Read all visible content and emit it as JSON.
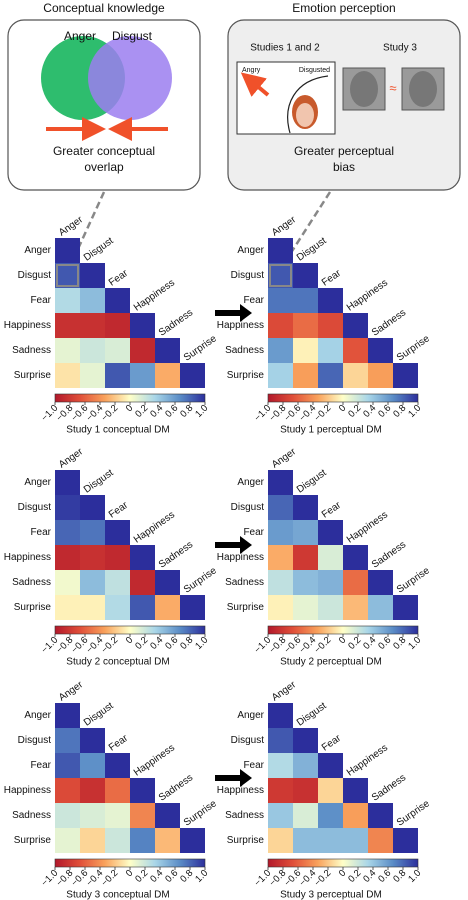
{
  "header": {
    "conceptual": {
      "title": "Conceptual knowledge",
      "circles": [
        "Anger",
        "Disgust"
      ],
      "caption": [
        "Greater conceptual",
        "overlap"
      ]
    },
    "perception": {
      "title": "Emotion perception",
      "studies_1_2": "Studies 1 and 2",
      "study_3": "Study 3",
      "axis_labels": [
        "Angry",
        "Disgusted"
      ],
      "approx": "≈",
      "caption": [
        "Greater perceptual",
        "bias"
      ]
    }
  },
  "chart_data": [
    {
      "type": "heatmap",
      "title": "Study 1 conceptual DM",
      "categories": [
        "Anger",
        "Disgust",
        "Fear",
        "Happiness",
        "Sadness",
        "Surprise"
      ],
      "values": [
        [
          1
        ],
        [
          0.85,
          1
        ],
        [
          0.3,
          0.45,
          1
        ],
        [
          -0.85,
          -0.85,
          -0.9,
          1
        ],
        [
          0.1,
          0.2,
          0.15,
          -0.9,
          1
        ],
        [
          -0.1,
          0.1,
          0.85,
          0.6,
          -0.3,
          1
        ]
      ],
      "clim": [
        -1,
        1
      ],
      "colors": [
        "#b2182b",
        "#e04f39",
        "#f9a25c",
        "#ffffc8",
        "#a9d6e8",
        "#5a8cc6",
        "#2c2e9c"
      ],
      "cticks": [
        {
          "value": -1,
          "label": "−1.0"
        },
        {
          "value": -0.8,
          "label": "−0.8"
        },
        {
          "value": -0.6,
          "label": "−0.6"
        },
        {
          "value": -0.4,
          "label": "−0.4"
        },
        {
          "value": -0.2,
          "label": "−0.2"
        },
        0,
        0.2,
        0.4,
        0.6,
        0.8,
        {
          "value": 1,
          "label": "1.0"
        }
      ]
    },
    {
      "type": "heatmap",
      "title": "Study 1 perceptual DM",
      "categories": [
        "Anger",
        "Disgust",
        "Fear",
        "Happiness",
        "Sadness",
        "Surprise"
      ],
      "values": [
        [
          1
        ],
        [
          0.85,
          1
        ],
        [
          0.75,
          0.75,
          1
        ],
        [
          -0.7,
          -0.55,
          -0.7,
          1
        ],
        [
          0.6,
          -0.05,
          0.35,
          -0.65,
          1
        ],
        [
          0.35,
          -0.35,
          0.8,
          -0.15,
          -0.35,
          1
        ]
      ],
      "clim": [
        -1,
        1
      ],
      "colors": [
        "#b2182b",
        "#e04f39",
        "#f9a25c",
        "#ffffc8",
        "#a9d6e8",
        "#5a8cc6",
        "#2c2e9c"
      ],
      "cticks": [
        {
          "value": -1,
          "label": "−1.0"
        },
        {
          "value": -0.8,
          "label": "−0.8"
        },
        {
          "value": -0.6,
          "label": "−0.6"
        },
        {
          "value": -0.4,
          "label": "−0.4"
        },
        {
          "value": -0.2,
          "label": "−0.2"
        },
        0,
        0.2,
        0.4,
        0.6,
        0.8,
        {
          "value": 1,
          "label": "1.0"
        }
      ]
    },
    {
      "type": "heatmap",
      "title": "Study 2 conceptual DM",
      "categories": [
        "Anger",
        "Disgust",
        "Fear",
        "Happiness",
        "Sadness",
        "Surprise"
      ],
      "values": [
        [
          1
        ],
        [
          0.95,
          1
        ],
        [
          0.8,
          0.75,
          1
        ],
        [
          -0.9,
          -0.85,
          -0.9,
          1
        ],
        [
          0.05,
          0.45,
          0.25,
          -0.9,
          1
        ],
        [
          -0.05,
          -0.05,
          0.3,
          0.85,
          -0.3,
          1
        ]
      ],
      "clim": [
        -1,
        1
      ],
      "colors": [
        "#b2182b",
        "#e04f39",
        "#f9a25c",
        "#ffffc8",
        "#a9d6e8",
        "#5a8cc6",
        "#2c2e9c"
      ],
      "cticks": [
        {
          "value": -1,
          "label": "−1.0"
        },
        {
          "value": -0.8,
          "label": "−0.8"
        },
        {
          "value": -0.6,
          "label": "−0.6"
        },
        {
          "value": -0.4,
          "label": "−0.4"
        },
        {
          "value": -0.2,
          "label": "−0.2"
        },
        0,
        0.2,
        0.4,
        0.6,
        0.8,
        {
          "value": 1,
          "label": "1.0"
        }
      ]
    },
    {
      "type": "heatmap",
      "title": "Study 2 perceptual DM",
      "categories": [
        "Anger",
        "Disgust",
        "Fear",
        "Happiness",
        "Sadness",
        "Surprise"
      ],
      "values": [
        [
          1
        ],
        [
          0.8,
          1
        ],
        [
          0.6,
          0.55,
          1
        ],
        [
          -0.3,
          -0.8,
          0.15,
          1
        ],
        [
          0.25,
          0.45,
          0.5,
          -0.55,
          1
        ],
        [
          -0.05,
          0.1,
          0.2,
          -0.25,
          0.45,
          1
        ]
      ],
      "clim": [
        -1,
        1
      ],
      "colors": [
        "#b2182b",
        "#e04f39",
        "#f9a25c",
        "#ffffc8",
        "#a9d6e8",
        "#5a8cc6",
        "#2c2e9c"
      ],
      "cticks": [
        {
          "value": -1,
          "label": "−1.0"
        },
        {
          "value": -0.8,
          "label": "−0.8"
        },
        {
          "value": -0.6,
          "label": "−0.6"
        },
        {
          "value": -0.4,
          "label": "−0.4"
        },
        {
          "value": -0.2,
          "label": "−0.2"
        },
        0,
        0.2,
        0.4,
        0.6,
        0.8,
        {
          "value": 1,
          "label": "1.0"
        }
      ]
    },
    {
      "type": "heatmap",
      "title": "Study 3 conceptual DM",
      "categories": [
        "Anger",
        "Disgust",
        "Fear",
        "Happiness",
        "Sadness",
        "Surprise"
      ],
      "values": [
        [
          1
        ],
        [
          0.75,
          1
        ],
        [
          0.85,
          0.65,
          1
        ],
        [
          -0.7,
          -0.85,
          -0.55,
          1
        ],
        [
          0.2,
          0.15,
          0.1,
          -0.45,
          1
        ],
        [
          0.1,
          -0.15,
          0.2,
          0.7,
          -0.25,
          1
        ]
      ],
      "clim": [
        -1,
        1
      ],
      "colors": [
        "#b2182b",
        "#e04f39",
        "#f9a25c",
        "#ffffc8",
        "#a9d6e8",
        "#5a8cc6",
        "#2c2e9c"
      ],
      "cticks": [
        {
          "value": -1,
          "label": "−1.0"
        },
        {
          "value": -0.8,
          "label": "−0.8"
        },
        {
          "value": -0.6,
          "label": "−0.6"
        },
        {
          "value": -0.4,
          "label": "−0.4"
        },
        {
          "value": -0.2,
          "label": "−0.2"
        },
        0,
        0.2,
        0.4,
        0.6,
        0.8,
        {
          "value": 1,
          "label": "1.0"
        }
      ]
    },
    {
      "type": "heatmap",
      "title": "Study 3 perceptual DM",
      "categories": [
        "Anger",
        "Disgust",
        "Fear",
        "Happiness",
        "Sadness",
        "Surprise"
      ],
      "values": [
        [
          1
        ],
        [
          0.85,
          1
        ],
        [
          0.3,
          0.5,
          1
        ],
        [
          -0.8,
          -0.85,
          -0.15,
          1
        ],
        [
          0.4,
          0.15,
          0.65,
          -0.35,
          1
        ],
        [
          -0.15,
          0.45,
          0.45,
          0.45,
          -0.45,
          1
        ]
      ],
      "clim": [
        -1,
        1
      ],
      "colors": [
        "#b2182b",
        "#e04f39",
        "#f9a25c",
        "#ffffc8",
        "#a9d6e8",
        "#5a8cc6",
        "#2c2e9c"
      ],
      "cticks": [
        {
          "value": -1,
          "label": "−1.0"
        },
        {
          "value": -0.8,
          "label": "−0.8"
        },
        {
          "value": -0.6,
          "label": "−0.6"
        },
        {
          "value": -0.4,
          "label": "−0.4"
        },
        {
          "value": -0.2,
          "label": "−0.2"
        },
        0,
        0.2,
        0.4,
        0.6,
        0.8,
        {
          "value": 1,
          "label": "1.0"
        }
      ]
    }
  ]
}
